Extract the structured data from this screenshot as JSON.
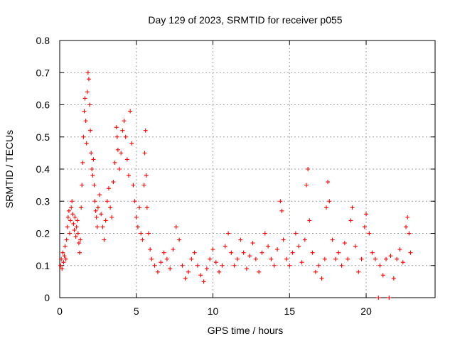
{
  "chart_data": {
    "type": "scatter",
    "title": "Day 129 of 2023, SRMTID for receiver p055",
    "xlabel": "GPS time / hours",
    "ylabel": "SRMTID / TECUs",
    "xlim": [
      0,
      24.5
    ],
    "ylim": [
      0,
      0.8
    ],
    "x_ticks": [
      0,
      5,
      10,
      15,
      20
    ],
    "y_ticks": [
      0,
      0.1,
      0.2,
      0.3,
      0.4,
      0.5,
      0.6,
      0.7,
      0.8
    ],
    "x_tick_labels": [
      "0",
      "5",
      "10",
      "15",
      "20"
    ],
    "y_tick_labels": [
      "0",
      "0.1",
      "0.2",
      "0.3",
      "0.4",
      "0.5",
      "0.6",
      "0.7",
      "0.8"
    ],
    "grid": true,
    "marker": "plus",
    "color": "#ff0000",
    "series": [
      {
        "name": "SRMTID",
        "points": [
          [
            0.05,
            0.1
          ],
          [
            0.1,
            0.12
          ],
          [
            0.15,
            0.09
          ],
          [
            0.2,
            0.14
          ],
          [
            0.25,
            0.11
          ],
          [
            0.3,
            0.13
          ],
          [
            0.35,
            0.16
          ],
          [
            0.4,
            0.12
          ],
          [
            0.45,
            0.18
          ],
          [
            0.5,
            0.22
          ],
          [
            0.55,
            0.25
          ],
          [
            0.6,
            0.27
          ],
          [
            0.65,
            0.2
          ],
          [
            0.7,
            0.24
          ],
          [
            0.75,
            0.28
          ],
          [
            0.8,
            0.3
          ],
          [
            0.85,
            0.26
          ],
          [
            0.9,
            0.23
          ],
          [
            0.95,
            0.21
          ],
          [
            1.0,
            0.25
          ],
          [
            1.05,
            0.19
          ],
          [
            1.1,
            0.22
          ],
          [
            1.15,
            0.24
          ],
          [
            1.2,
            0.2
          ],
          [
            1.25,
            0.17
          ],
          [
            1.3,
            0.14
          ],
          [
            1.35,
            0.18
          ],
          [
            1.4,
            0.28
          ],
          [
            1.45,
            0.35
          ],
          [
            1.5,
            0.42
          ],
          [
            1.55,
            0.5
          ],
          [
            1.6,
            0.58
          ],
          [
            1.65,
            0.62
          ],
          [
            1.7,
            0.55
          ],
          [
            1.75,
            0.48
          ],
          [
            1.8,
            0.64
          ],
          [
            1.85,
            0.7
          ],
          [
            1.9,
            0.68
          ],
          [
            1.95,
            0.6
          ],
          [
            2.0,
            0.52
          ],
          [
            2.05,
            0.45
          ],
          [
            2.1,
            0.4
          ],
          [
            2.15,
            0.38
          ],
          [
            2.2,
            0.43
          ],
          [
            2.25,
            0.35
          ],
          [
            2.3,
            0.3
          ],
          [
            2.35,
            0.27
          ],
          [
            2.4,
            0.25
          ],
          [
            2.45,
            0.22
          ],
          [
            2.5,
            0.28
          ],
          [
            2.6,
            0.32
          ],
          [
            2.7,
            0.26
          ],
          [
            2.8,
            0.22
          ],
          [
            2.9,
            0.18
          ],
          [
            3.0,
            0.24
          ],
          [
            3.1,
            0.3
          ],
          [
            3.2,
            0.34
          ],
          [
            3.3,
            0.28
          ],
          [
            3.4,
            0.25
          ],
          [
            3.5,
            0.36
          ],
          [
            3.6,
            0.42
          ],
          [
            3.7,
            0.53
          ],
          [
            3.75,
            0.5
          ],
          [
            3.8,
            0.46
          ],
          [
            3.9,
            0.4
          ],
          [
            4.0,
            0.45
          ],
          [
            4.1,
            0.52
          ],
          [
            4.2,
            0.55
          ],
          [
            4.3,
            0.5
          ],
          [
            4.4,
            0.43
          ],
          [
            4.5,
            0.38
          ],
          [
            4.6,
            0.58
          ],
          [
            4.7,
            0.48
          ],
          [
            4.8,
            0.35
          ],
          [
            4.9,
            0.3
          ],
          [
            5.0,
            0.25
          ],
          [
            5.1,
            0.22
          ],
          [
            5.2,
            0.28
          ],
          [
            5.3,
            0.2
          ],
          [
            5.4,
            0.18
          ],
          [
            5.5,
            0.35
          ],
          [
            5.55,
            0.45
          ],
          [
            5.6,
            0.52
          ],
          [
            5.65,
            0.38
          ],
          [
            5.7,
            0.28
          ],
          [
            5.8,
            0.2
          ],
          [
            5.9,
            0.15
          ],
          [
            6.0,
            0.12
          ],
          [
            6.2,
            0.1
          ],
          [
            6.4,
            0.08
          ],
          [
            6.6,
            0.11
          ],
          [
            6.8,
            0.14
          ],
          [
            7.0,
            0.12
          ],
          [
            7.2,
            0.09
          ],
          [
            7.4,
            0.15
          ],
          [
            7.6,
            0.22
          ],
          [
            7.8,
            0.18
          ],
          [
            8.0,
            0.1
          ],
          [
            8.2,
            0.06
          ],
          [
            8.4,
            0.08
          ],
          [
            8.6,
            0.12
          ],
          [
            8.8,
            0.14
          ],
          [
            9.0,
            0.1
          ],
          [
            9.2,
            0.07
          ],
          [
            9.4,
            0.05
          ],
          [
            9.6,
            0.09
          ],
          [
            9.8,
            0.12
          ],
          [
            10.0,
            0.15
          ],
          [
            10.2,
            0.11
          ],
          [
            10.4,
            0.08
          ],
          [
            10.6,
            0.1
          ],
          [
            10.8,
            0.16
          ],
          [
            11.0,
            0.2
          ],
          [
            11.2,
            0.14
          ],
          [
            11.4,
            0.1
          ],
          [
            11.6,
            0.12
          ],
          [
            11.8,
            0.18
          ],
          [
            12.0,
            0.14
          ],
          [
            12.2,
            0.09
          ],
          [
            12.4,
            0.13
          ],
          [
            12.6,
            0.17
          ],
          [
            12.8,
            0.12
          ],
          [
            13.0,
            0.08
          ],
          [
            13.2,
            0.14
          ],
          [
            13.4,
            0.2
          ],
          [
            13.6,
            0.16
          ],
          [
            13.8,
            0.12
          ],
          [
            14.0,
            0.1
          ],
          [
            14.2,
            0.15
          ],
          [
            14.4,
            0.3
          ],
          [
            14.5,
            0.27
          ],
          [
            14.6,
            0.18
          ],
          [
            14.8,
            0.12
          ],
          [
            15.0,
            0.1
          ],
          [
            15.2,
            0.14
          ],
          [
            15.4,
            0.2
          ],
          [
            15.6,
            0.16
          ],
          [
            15.8,
            0.11
          ],
          [
            16.0,
            0.18
          ],
          [
            16.1,
            0.35
          ],
          [
            16.2,
            0.4
          ],
          [
            16.3,
            0.24
          ],
          [
            16.5,
            0.14
          ],
          [
            16.7,
            0.08
          ],
          [
            16.9,
            0.1
          ],
          [
            17.1,
            0.06
          ],
          [
            17.3,
            0.12
          ],
          [
            17.4,
            0.28
          ],
          [
            17.5,
            0.36
          ],
          [
            17.6,
            0.3
          ],
          [
            17.8,
            0.18
          ],
          [
            18.0,
            0.12
          ],
          [
            18.2,
            0.14
          ],
          [
            18.4,
            0.1
          ],
          [
            18.6,
            0.17
          ],
          [
            18.8,
            0.12
          ],
          [
            19.0,
            0.24
          ],
          [
            19.1,
            0.28
          ],
          [
            19.3,
            0.16
          ],
          [
            19.5,
            0.08
          ],
          [
            19.7,
            0.12
          ],
          [
            19.9,
            0.22
          ],
          [
            20.0,
            0.26
          ],
          [
            20.2,
            0.2
          ],
          [
            20.4,
            0.14
          ],
          [
            20.6,
            0.12
          ],
          [
            20.9,
            0.1
          ],
          [
            21.1,
            0.07
          ],
          [
            21.3,
            0.12
          ],
          [
            21.6,
            0.13
          ],
          [
            21.8,
            0.06
          ],
          [
            22.0,
            0.12
          ],
          [
            22.2,
            0.15
          ],
          [
            22.4,
            0.11
          ],
          [
            22.6,
            0.22
          ],
          [
            22.7,
            0.25
          ],
          [
            22.8,
            0.2
          ],
          [
            22.9,
            0.14
          ],
          [
            20.8,
            0.0
          ],
          [
            21.5,
            0.0
          ]
        ]
      }
    ]
  }
}
